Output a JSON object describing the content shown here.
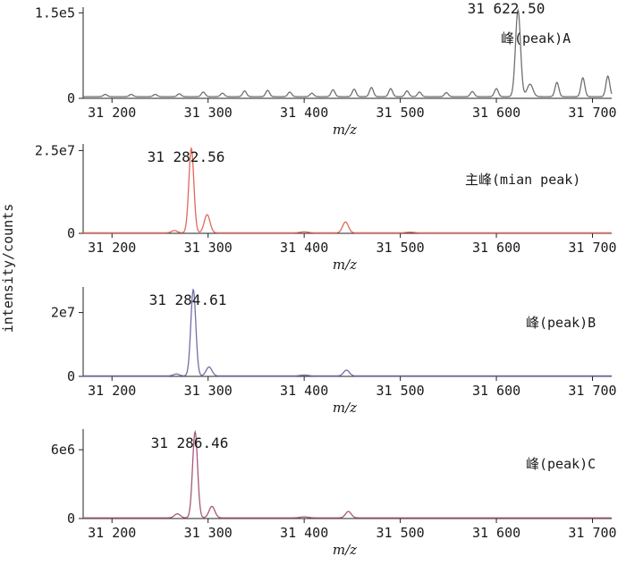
{
  "ylabel": "intensity/counts",
  "chart_data": [
    {
      "type": "line",
      "panel_label": "峰(peak)A",
      "peak_annotation": "31 622.50",
      "color": "#707070",
      "xlabel": "m/z",
      "ylabel": "intensity/counts",
      "xlim": [
        31170,
        31720
      ],
      "ylim": [
        0,
        160000
      ],
      "yticks": [
        {
          "value": 0,
          "label": "0"
        },
        {
          "value": 150000,
          "label": "1.5e5"
        }
      ],
      "xticks": [
        {
          "value": 31200,
          "label": "31 200"
        },
        {
          "value": 31300,
          "label": "31 300"
        },
        {
          "value": 31400,
          "label": "31 400"
        },
        {
          "value": 31500,
          "label": "31 500"
        },
        {
          "value": 31600,
          "label": "31 600"
        },
        {
          "value": 31700,
          "label": "31 700"
        }
      ],
      "baseline": 3000,
      "peaks": [
        {
          "x": 31622.5,
          "y": 152000,
          "w": 2.6
        },
        {
          "x": 31635,
          "y": 22000,
          "w": 3
        },
        {
          "x": 31663,
          "y": 25000,
          "w": 2
        },
        {
          "x": 31690,
          "y": 33000,
          "w": 2
        },
        {
          "x": 31716,
          "y": 36000,
          "w": 2
        },
        {
          "x": 31600,
          "y": 14000,
          "w": 2
        },
        {
          "x": 31575,
          "y": 9000,
          "w": 2
        },
        {
          "x": 31548,
          "y": 7000,
          "w": 2
        },
        {
          "x": 31520,
          "y": 8000,
          "w": 2
        },
        {
          "x": 31507,
          "y": 10000,
          "w": 2
        },
        {
          "x": 31490,
          "y": 14000,
          "w": 2
        },
        {
          "x": 31470,
          "y": 16000,
          "w": 2
        },
        {
          "x": 31452,
          "y": 13000,
          "w": 2
        },
        {
          "x": 31430,
          "y": 12000,
          "w": 2
        },
        {
          "x": 31408,
          "y": 6000,
          "w": 2
        },
        {
          "x": 31385,
          "y": 8000,
          "w": 2
        },
        {
          "x": 31362,
          "y": 11000,
          "w": 2
        },
        {
          "x": 31338,
          "y": 10000,
          "w": 2
        },
        {
          "x": 31315,
          "y": 6000,
          "w": 2
        },
        {
          "x": 31295,
          "y": 8000,
          "w": 2
        },
        {
          "x": 31270,
          "y": 5000,
          "w": 2
        },
        {
          "x": 31245,
          "y": 4000,
          "w": 2
        },
        {
          "x": 31220,
          "y": 4000,
          "w": 2
        },
        {
          "x": 31193,
          "y": 4000,
          "w": 2
        }
      ]
    },
    {
      "type": "line",
      "panel_label": "主峰(mian peak)",
      "peak_annotation": "31 282.56",
      "color": "#e0685c",
      "xlabel": "m/z",
      "ylabel": "intensity/counts",
      "xlim": [
        31170,
        31720
      ],
      "ylim": [
        0,
        27000000
      ],
      "yticks": [
        {
          "value": 0,
          "label": "0"
        },
        {
          "value": 25000000,
          "label": "2.5e7"
        }
      ],
      "xticks": [
        {
          "value": 31200,
          "label": "31 200"
        },
        {
          "value": 31300,
          "label": "31 300"
        },
        {
          "value": 31400,
          "label": "31 400"
        },
        {
          "value": 31500,
          "label": "31 500"
        },
        {
          "value": 31600,
          "label": "31 600"
        },
        {
          "value": 31700,
          "label": "31 700"
        }
      ],
      "baseline": 150000,
      "peaks": [
        {
          "x": 31282.56,
          "y": 25500000,
          "w": 2.6
        },
        {
          "x": 31299,
          "y": 5500000,
          "w": 3
        },
        {
          "x": 31265,
          "y": 700000,
          "w": 3
        },
        {
          "x": 31443,
          "y": 3300000,
          "w": 3
        },
        {
          "x": 31400,
          "y": 300000,
          "w": 4
        },
        {
          "x": 31510,
          "y": 200000,
          "w": 4
        }
      ]
    },
    {
      "type": "line",
      "panel_label": "峰(peak)B",
      "peak_annotation": "31 284.61",
      "color": "#7070a8",
      "xlabel": "m/z",
      "ylabel": "intensity/counts",
      "xlim": [
        31170,
        31720
      ],
      "ylim": [
        0,
        28000000
      ],
      "yticks": [
        {
          "value": 0,
          "label": "0"
        },
        {
          "value": 20000000,
          "label": "2e7"
        }
      ],
      "xticks": [
        {
          "value": 31200,
          "label": "31 200"
        },
        {
          "value": 31300,
          "label": "31 300"
        },
        {
          "value": 31400,
          "label": "31 400"
        },
        {
          "value": 31500,
          "label": "31 500"
        },
        {
          "value": 31600,
          "label": "31 600"
        },
        {
          "value": 31700,
          "label": "31 700"
        }
      ],
      "baseline": 150000,
      "peaks": [
        {
          "x": 31284.61,
          "y": 27000000,
          "w": 2.6
        },
        {
          "x": 31301,
          "y": 2800000,
          "w": 3
        },
        {
          "x": 31267,
          "y": 600000,
          "w": 3
        },
        {
          "x": 31444,
          "y": 1800000,
          "w": 3
        },
        {
          "x": 31400,
          "y": 250000,
          "w": 4
        }
      ]
    },
    {
      "type": "line",
      "panel_label": "峰(peak)C",
      "peak_annotation": "31 286.46",
      "color": "#a8587a",
      "xlabel": "m/z",
      "ylabel": "intensity/counts",
      "xlim": [
        31170,
        31720
      ],
      "ylim": [
        0,
        7800000
      ],
      "yticks": [
        {
          "value": 0,
          "label": "0"
        },
        {
          "value": 6000000,
          "label": "6e6"
        }
      ],
      "xticks": [
        {
          "value": 31200,
          "label": "31 200"
        },
        {
          "value": 31300,
          "label": "31 300"
        },
        {
          "value": 31400,
          "label": "31 400"
        },
        {
          "value": 31500,
          "label": "31 500"
        },
        {
          "value": 31600,
          "label": "31 600"
        },
        {
          "value": 31700,
          "label": "31 700"
        }
      ],
      "baseline": 60000,
      "peaks": [
        {
          "x": 31286.46,
          "y": 7500000,
          "w": 2.6
        },
        {
          "x": 31304,
          "y": 1000000,
          "w": 3
        },
        {
          "x": 31268,
          "y": 350000,
          "w": 3
        },
        {
          "x": 31446,
          "y": 550000,
          "w": 3
        },
        {
          "x": 31400,
          "y": 80000,
          "w": 4
        }
      ]
    }
  ]
}
